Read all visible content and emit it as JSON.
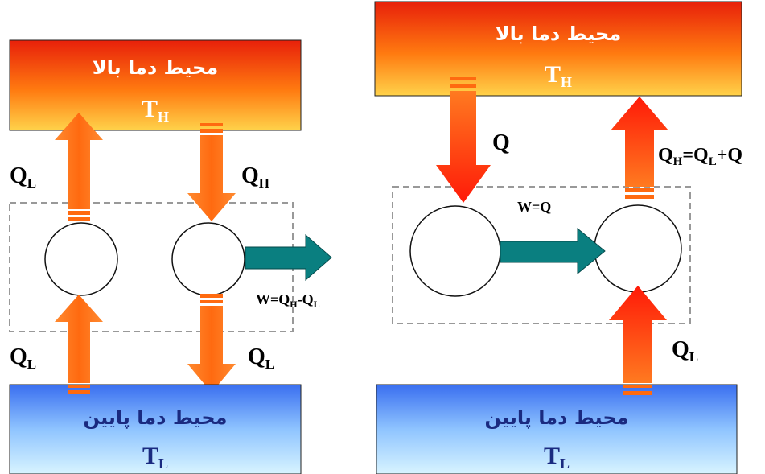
{
  "left": {
    "hot_box": {
      "title": "محیط دما بالا",
      "temp": "T",
      "temp_sub": "H"
    },
    "cold_box": {
      "title": "محیط دما پایین",
      "temp": "T",
      "temp_sub": "L"
    },
    "label_ql_top": {
      "main": "Q",
      "sub": "L"
    },
    "label_qh": {
      "main": "Q",
      "sub": "H"
    },
    "label_ql_bottom_left": {
      "main": "Q",
      "sub": "L"
    },
    "label_ql_bottom_right": {
      "main": "Q",
      "sub": "L"
    },
    "work_label": {
      "p1": "W=Q",
      "s1": "H",
      "p2": "-Q",
      "s2": "L"
    }
  },
  "right": {
    "hot_box": {
      "title": "محیط دما بالا",
      "temp": "T",
      "temp_sub": "H"
    },
    "cold_box": {
      "title": "محیط دما پایین",
      "temp": "T",
      "temp_sub": "L"
    },
    "label_q": "Q",
    "label_qh_sum": {
      "p1": "Q",
      "s1": "H",
      "p2": "=Q",
      "s2": "L",
      "p3": "+Q"
    },
    "work_label": "W=Q",
    "label_ql": {
      "main": "Q",
      "sub": "L"
    }
  },
  "colors": {
    "hot_top": "#e8200a",
    "hot_bottom": "#ffd24a",
    "cold_top": "#3a6ff0",
    "cold_bottom": "#d8f4ff",
    "arrow_orange": "#ff6a10",
    "arrow_red": "#ff2a10",
    "arrow_teal": "#0a7f80",
    "dashed_border": "#999999"
  }
}
